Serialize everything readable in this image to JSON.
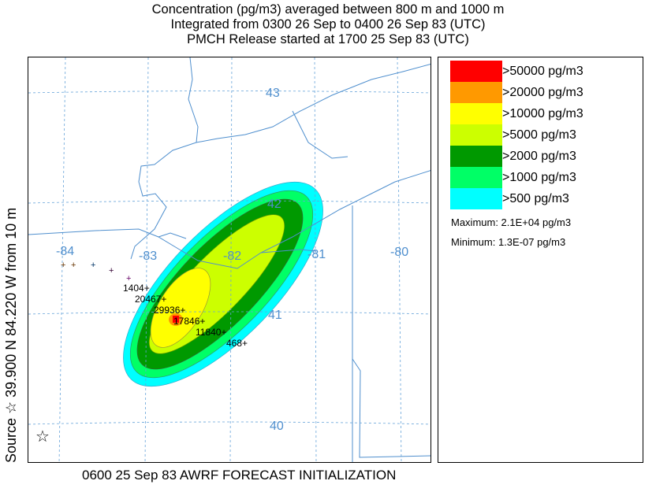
{
  "header": {
    "line1": "Concentration  (pg/m3) averaged between   800 m and  1000 m",
    "line2": "Integrated from 0300 26 Sep to 0400 26 Sep 83 (UTC)",
    "line3": "PMCH Release started at 1700 25 Sep 83 (UTC)"
  },
  "side_label": "Source ☆ 39.900 N  84.220 W  from  10 m",
  "footer": "0600 25 Sep 83 AWRF FORECAST INITIALIZATION",
  "map": {
    "longitude_labels": [
      "-84",
      "-83",
      "-82",
      "-81",
      "-80"
    ],
    "latitude_labels": [
      "43",
      "42",
      "41",
      "40"
    ],
    "source_marker": "star-icon",
    "stations": [
      {
        "label": "1404+"
      },
      {
        "label": "20467+"
      },
      {
        "label": "29936+"
      },
      {
        "label": "17846+"
      },
      {
        "label": "11840+"
      },
      {
        "label": "468+"
      }
    ]
  },
  "legend": {
    "items": [
      {
        "label": ">50000 pg/m3",
        "color": "#ff0000"
      },
      {
        "label": ">20000 pg/m3",
        "color": "#ff9900"
      },
      {
        "label": ">10000 pg/m3",
        "color": "#ffff00"
      },
      {
        "label": ">5000 pg/m3",
        "color": "#ccff00"
      },
      {
        "label": ">2000 pg/m3",
        "color": "#009900"
      },
      {
        "label": ">1000 pg/m3",
        "color": "#00ff66"
      },
      {
        "label": ">500 pg/m3",
        "color": "#00ffff"
      }
    ],
    "maximum": "Maximum: 2.1E+04 pg/m3",
    "minimum": "Minimum: 1.3E-07 pg/m3"
  }
}
